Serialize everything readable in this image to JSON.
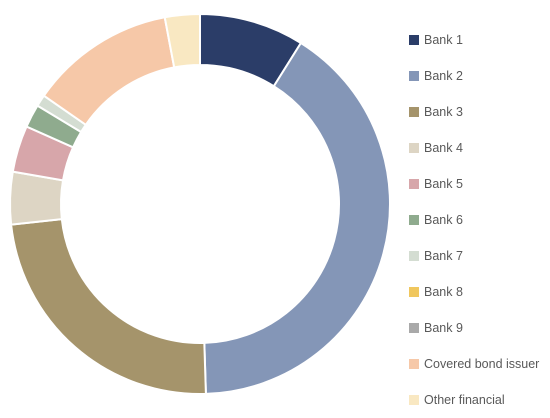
{
  "chart_data": {
    "type": "donut",
    "title": "",
    "legend_position": "right",
    "series": [
      {
        "categories": [
          "Bank 1",
          "Bank 2",
          "Bank 3",
          "Bank 4",
          "Bank 5",
          "Bank 6",
          "Bank 7",
          "Bank 8",
          "Bank 9",
          "Covered bond issuer",
          "Other financial"
        ],
        "values": [
          9.0,
          41.0,
          24.0,
          4.5,
          4.0,
          2.0,
          1.0,
          0.0,
          0.0,
          12.5,
          3.0
        ],
        "colors": [
          "#2b3d68",
          "#8496b7",
          "#a5946b",
          "#ddd5c4",
          "#d7a6aa",
          "#8fab8e",
          "#d4ddd2",
          "#f0c75e",
          "#a9a9a9",
          "#f6c8a8",
          "#f9e8c2"
        ]
      }
    ]
  }
}
